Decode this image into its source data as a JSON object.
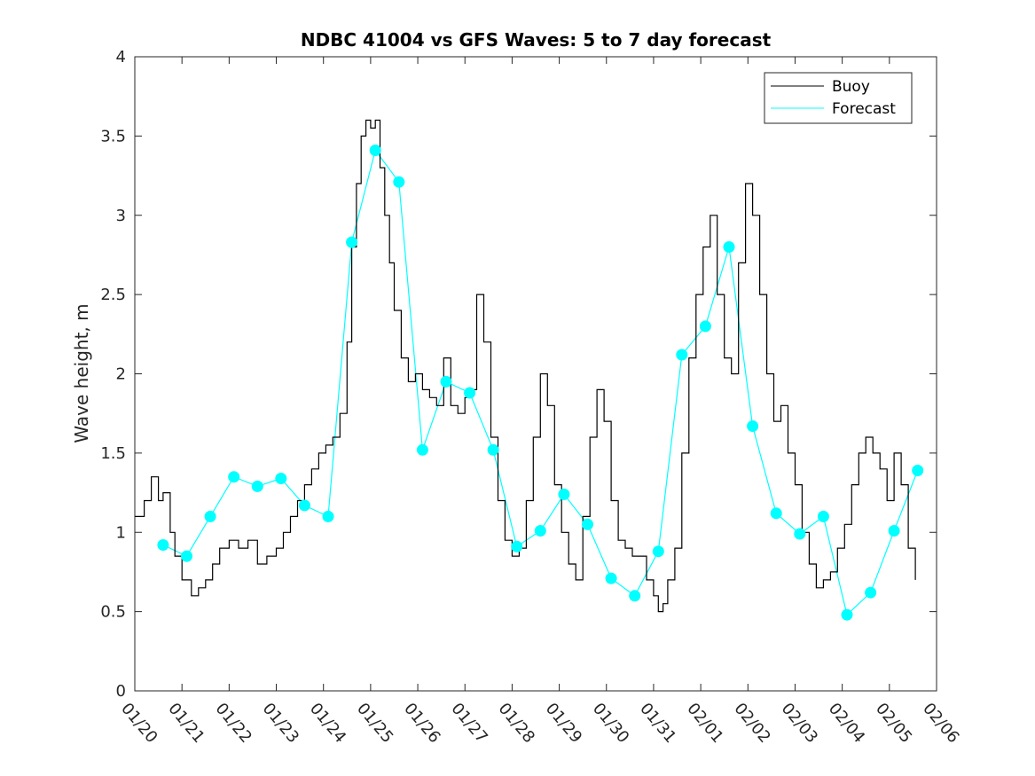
{
  "chart_data": {
    "type": "line",
    "title": "NDBC 41004 vs GFS Waves: 5 to 7 day forecast",
    "xlabel": "",
    "ylabel": "Wave height, m",
    "ylim": [
      0,
      4
    ],
    "yticks": [
      0,
      0.5,
      1,
      1.5,
      2,
      2.5,
      3,
      3.5,
      4
    ],
    "ytick_labels": [
      "0",
      "0.5",
      "1",
      "1.5",
      "2",
      "2.5",
      "3",
      "3.5",
      "4"
    ],
    "xlim": [
      0,
      17
    ],
    "xtick_labels": [
      "01/20",
      "01/21",
      "01/22",
      "01/23",
      "01/24",
      "01/25",
      "01/26",
      "01/27",
      "01/28",
      "01/29",
      "01/30",
      "01/31",
      "02/01",
      "02/02",
      "02/03",
      "02/04",
      "02/05",
      "02/06"
    ],
    "legend": {
      "position": "top-right",
      "entries": [
        "Buoy",
        "Forecast"
      ]
    },
    "colors": {
      "buoy": "#000000",
      "forecast": "#00ffff",
      "axis": "#262626"
    },
    "series": [
      {
        "name": "Buoy",
        "x": [
          0,
          0.2,
          0.35,
          0.5,
          0.6,
          0.75,
          0.85,
          1.0,
          1.2,
          1.35,
          1.5,
          1.65,
          1.8,
          2.0,
          2.2,
          2.4,
          2.6,
          2.8,
          3.0,
          3.15,
          3.3,
          3.45,
          3.6,
          3.75,
          3.9,
          4.05,
          4.2,
          4.35,
          4.5,
          4.6,
          4.7,
          4.8,
          4.9,
          5.0,
          5.1,
          5.2,
          5.3,
          5.4,
          5.5,
          5.65,
          5.8,
          5.95,
          6.1,
          6.25,
          6.4,
          6.55,
          6.7,
          6.85,
          7.0,
          7.1,
          7.25,
          7.4,
          7.55,
          7.7,
          7.85,
          8.0,
          8.15,
          8.3,
          8.45,
          8.6,
          8.75,
          8.9,
          9.05,
          9.2,
          9.35,
          9.5,
          9.65,
          9.8,
          9.95,
          10.1,
          10.25,
          10.4,
          10.55,
          10.7,
          10.85,
          11.0,
          11.1,
          11.2,
          11.3,
          11.45,
          11.6,
          11.75,
          11.9,
          12.05,
          12.2,
          12.35,
          12.5,
          12.65,
          12.8,
          12.95,
          13.1,
          13.25,
          13.4,
          13.55,
          13.7,
          13.85,
          14.0,
          14.15,
          14.3,
          14.45,
          14.6,
          14.75,
          14.9,
          15.05,
          15.2,
          15.35,
          15.5,
          15.65,
          15.8,
          15.95,
          16.1,
          16.25,
          16.4,
          16.55
        ],
        "values": [
          1.1,
          1.2,
          1.35,
          1.2,
          1.25,
          1.0,
          0.85,
          0.7,
          0.6,
          0.65,
          0.7,
          0.8,
          0.9,
          0.95,
          0.9,
          0.95,
          0.8,
          0.85,
          0.9,
          1.0,
          1.1,
          1.2,
          1.3,
          1.4,
          1.5,
          1.55,
          1.6,
          1.75,
          2.2,
          2.8,
          3.2,
          3.5,
          3.6,
          3.55,
          3.6,
          3.3,
          3.0,
          2.7,
          2.4,
          2.1,
          1.95,
          2.0,
          1.9,
          1.85,
          1.8,
          2.1,
          1.8,
          1.75,
          1.85,
          1.9,
          2.5,
          2.2,
          1.6,
          1.2,
          0.95,
          0.85,
          0.9,
          1.2,
          1.6,
          2.0,
          1.8,
          1.3,
          1.0,
          0.8,
          0.7,
          1.1,
          1.6,
          1.9,
          1.7,
          1.2,
          0.95,
          0.9,
          0.85,
          0.85,
          0.7,
          0.6,
          0.5,
          0.55,
          0.7,
          0.9,
          1.5,
          2.1,
          2.5,
          2.8,
          3.0,
          2.5,
          2.1,
          2.0,
          2.7,
          3.2,
          3.0,
          2.5,
          2.0,
          1.7,
          1.8,
          1.5,
          1.3,
          1.0,
          0.8,
          0.65,
          0.7,
          0.75,
          0.9,
          1.05,
          1.3,
          1.5,
          1.6,
          1.5,
          1.4,
          1.2,
          1.5,
          1.3,
          0.9,
          0.7
        ]
      },
      {
        "name": "Forecast",
        "x": [
          0.6,
          1.1,
          1.6,
          2.1,
          2.6,
          3.1,
          3.6,
          4.1,
          4.6,
          5.1,
          5.6,
          6.1,
          6.6,
          7.1,
          7.6,
          8.1,
          8.6,
          9.1,
          9.6,
          10.1,
          10.6,
          11.1,
          11.6,
          12.1,
          12.6,
          13.1,
          13.6,
          14.1,
          14.6,
          15.1,
          15.6,
          16.1,
          16.6
        ],
        "values": [
          0.92,
          0.85,
          1.1,
          1.35,
          1.29,
          1.34,
          1.17,
          1.1,
          2.83,
          3.41,
          3.21,
          1.52,
          1.95,
          1.88,
          1.52,
          0.91,
          1.01,
          1.24,
          1.05,
          0.71,
          0.6,
          0.88,
          2.12,
          2.3,
          2.8,
          1.67,
          1.12,
          0.99,
          1.1,
          0.48,
          0.62,
          1.01,
          1.39
        ]
      }
    ]
  }
}
